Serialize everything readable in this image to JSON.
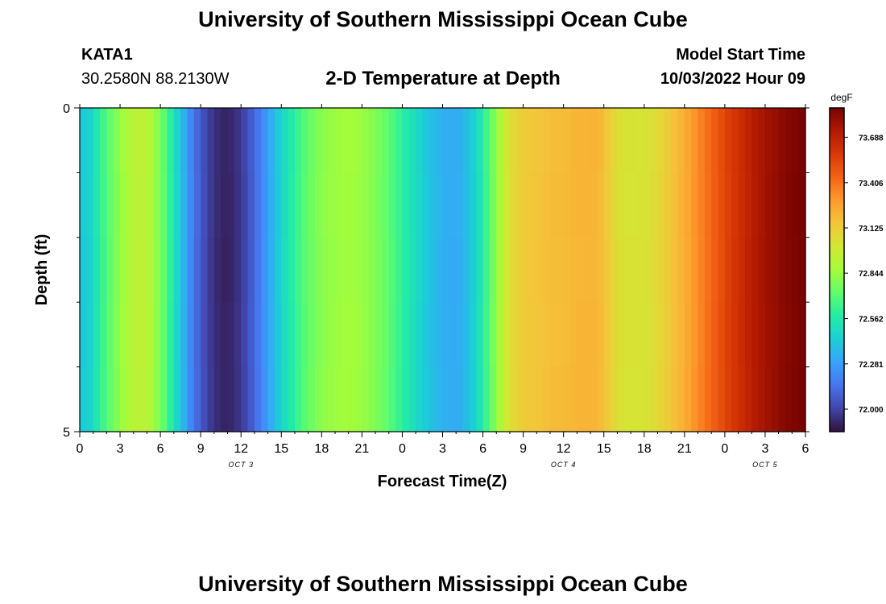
{
  "header": {
    "title": "University of Southern Mississippi Ocean Cube",
    "station": "KATA1",
    "coordinates": "30.2580N  88.2130W",
    "chart_title": "2-D Temperature at Depth",
    "model_start_label": "Model Start Time",
    "model_start_value": "10/03/2022 Hour 09"
  },
  "footer": {
    "title": "University of Southern Mississippi Ocean Cube"
  },
  "chart_data": {
    "type": "heatmap",
    "xlabel": "Forecast Time(Z)",
    "ylabel": "Depth (ft)",
    "x_tick_labels": [
      "0",
      "3",
      "6",
      "9",
      "12",
      "15",
      "18",
      "21",
      "0",
      "3",
      "6",
      "9",
      "12",
      "15",
      "18",
      "21",
      "0",
      "3",
      "6"
    ],
    "x_date_labels": [
      {
        "label": "OCT 3",
        "hour": 12
      },
      {
        "label": "OCT 4",
        "hour": 36
      },
      {
        "label": "OCT 5",
        "hour": 51
      }
    ],
    "x_range_hours": [
      0,
      54
    ],
    "y_tick_labels": [
      "0",
      "5"
    ],
    "ylim": [
      0,
      5
    ],
    "colorbar": {
      "unit": "degF",
      "ticks": [
        "73.688",
        "73.406",
        "73.125",
        "72.844",
        "72.562",
        "72.281",
        "72.000"
      ],
      "tick_values": [
        73.688,
        73.406,
        73.125,
        72.844,
        72.562,
        72.281,
        72.0
      ],
      "range": [
        71.86,
        73.87
      ],
      "colormap": [
        "#30123b",
        "#4145ab",
        "#4675ed",
        "#39a2fc",
        "#1bcfd4",
        "#24eca6",
        "#61fc6c",
        "#a4fc3b",
        "#d1e834",
        "#f3c63a",
        "#fe9b2d",
        "#f36315",
        "#d93806",
        "#b11901",
        "#7a0402"
      ]
    },
    "series": [
      {
        "values": [
          72.42,
          72.45,
          72.54,
          72.64,
          72.72,
          72.79,
          72.86,
          72.91,
          72.94,
          72.94,
          72.9,
          72.82,
          72.72,
          72.6,
          72.47,
          72.34,
          72.21,
          72.11,
          72.03,
          71.97,
          71.93,
          71.91,
          71.92,
          71.95,
          72.0,
          72.07,
          72.15,
          72.24,
          72.33,
          72.42,
          72.5,
          72.57,
          72.64,
          72.7,
          72.75,
          72.79,
          72.82,
          72.84,
          72.85,
          72.86,
          72.86,
          72.85,
          72.83,
          72.8,
          72.77,
          72.73,
          72.68,
          72.63,
          72.57,
          72.52,
          72.47,
          72.42,
          72.38,
          72.35,
          72.33,
          72.32,
          72.33,
          72.37,
          72.43,
          72.52,
          72.64,
          72.76,
          72.89,
          73.0,
          73.07,
          73.11,
          73.14,
          73.15,
          73.16,
          73.17,
          73.18,
          73.18,
          73.19,
          73.2,
          73.21,
          73.21,
          73.21,
          73.19,
          73.14,
          73.08,
          73.04,
          73.03,
          73.03,
          73.03,
          73.04,
          73.06,
          73.09,
          73.13,
          73.17,
          73.21,
          73.26,
          73.31,
          73.36,
          73.41,
          73.46,
          73.51,
          73.56,
          73.6,
          73.64,
          73.68,
          73.72,
          73.75,
          73.78,
          73.8,
          73.83,
          73.85,
          73.86,
          73.87
        ]
      }
    ]
  }
}
